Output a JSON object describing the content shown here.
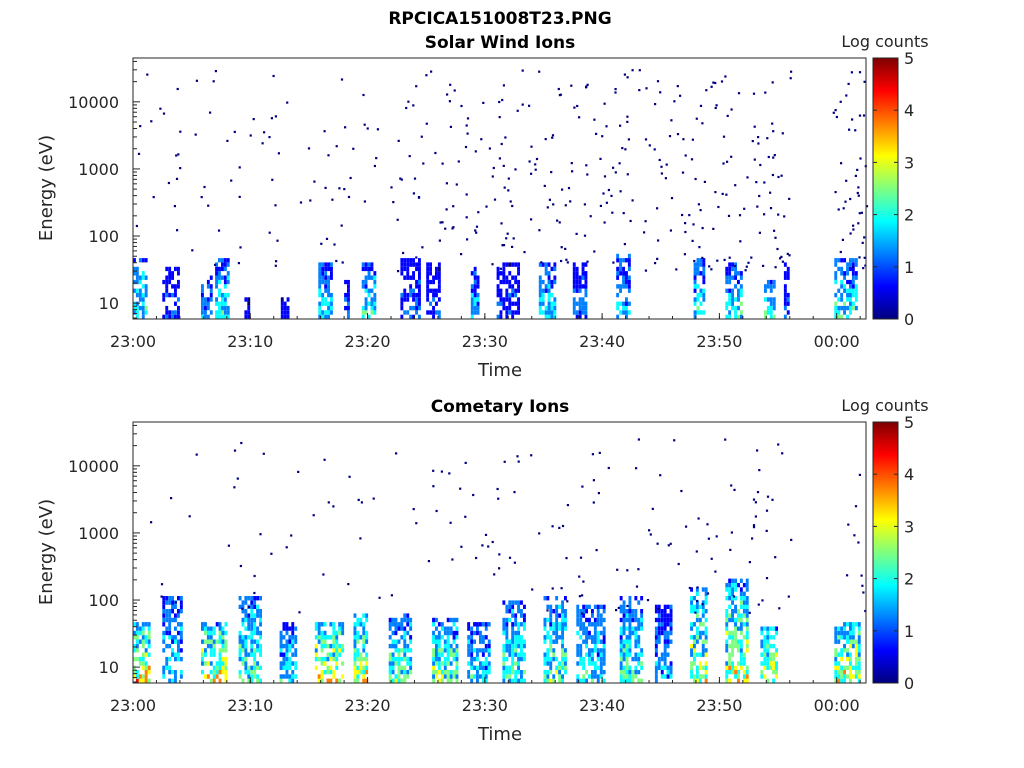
{
  "figure": {
    "title": "RPCICA151008T23.PNG"
  },
  "colormap": [
    "#00007f",
    "#0000ff",
    "#007fff",
    "#00ffff",
    "#7fff7f",
    "#ffff00",
    "#ff7f00",
    "#ff0000",
    "#7f0000"
  ],
  "chart_data": [
    {
      "type": "heatmap",
      "title": "Solar Wind Ions",
      "xlabel": "Time",
      "ylabel": "Energy (eV)",
      "x_ticks": [
        {
          "value": 0,
          "label": "23:00"
        },
        {
          "value": 10,
          "label": "23:10"
        },
        {
          "value": 20,
          "label": "23:20"
        },
        {
          "value": 30,
          "label": "23:30"
        },
        {
          "value": 40,
          "label": "23:40"
        },
        {
          "value": 50,
          "label": "23:50"
        },
        {
          "value": 60,
          "label": "00:00"
        }
      ],
      "xlim_minutes": [
        0,
        62.5
      ],
      "y_scale": "log",
      "ylim": [
        5.8,
        45000
      ],
      "y_ticks": [
        {
          "value": 10,
          "label": "10"
        },
        {
          "value": 100,
          "label": "100"
        },
        {
          "value": 1000,
          "label": "1000"
        },
        {
          "value": 10000,
          "label": "10000"
        }
      ],
      "colorbar": {
        "label": "Log counts",
        "min": 0,
        "max": 5,
        "ticks": [
          "0",
          "1",
          "2",
          "3",
          "4",
          "5"
        ]
      },
      "scatter_low_counts": {
        "count": 430,
        "seed": 11,
        "min_energy": 30,
        "max_energy": 30000,
        "density_growth": "increasing with time"
      },
      "bursts": [
        {
          "t": [
            0.0,
            1.2
          ],
          "emax": 42,
          "level": 1.7
        },
        {
          "t": [
            2.5,
            3.8
          ],
          "emax": 30,
          "level": 0.8
        },
        {
          "t": [
            5.8,
            6.8
          ],
          "emax": 25,
          "level": 1.2
        },
        {
          "t": [
            7.0,
            8.2
          ],
          "emax": 42,
          "level": 1.6
        },
        {
          "t": [
            9.5,
            10.0
          ],
          "emax": 12,
          "level": 0.5
        },
        {
          "t": [
            12.6,
            13.3
          ],
          "emax": 12,
          "level": 0.6
        },
        {
          "t": [
            15.8,
            17.0
          ],
          "emax": 40,
          "level": 1.5
        },
        {
          "t": [
            18.0,
            18.5
          ],
          "emax": 20,
          "level": 0.8
        },
        {
          "t": [
            19.5,
            20.6
          ],
          "emax": 40,
          "level": 1.6
        },
        {
          "t": [
            22.8,
            24.4
          ],
          "emax": 42,
          "level": 0.9
        },
        {
          "t": [
            25.0,
            26.2
          ],
          "emax": 36,
          "level": 0.8
        },
        {
          "t": [
            28.8,
            29.4
          ],
          "emax": 30,
          "level": 1.3
        },
        {
          "t": [
            31.0,
            33.0
          ],
          "emax": 36,
          "level": 0.8
        },
        {
          "t": [
            34.6,
            36.0
          ],
          "emax": 38,
          "level": 1.5
        },
        {
          "t": [
            37.5,
            38.6
          ],
          "emax": 40,
          "level": 1.1
        },
        {
          "t": [
            41.2,
            42.3
          ],
          "emax": 50,
          "level": 1.4
        },
        {
          "t": [
            47.8,
            48.8
          ],
          "emax": 42,
          "level": 1.6
        },
        {
          "t": [
            50.5,
            52.0
          ],
          "emax": 40,
          "level": 1.6
        },
        {
          "t": [
            53.8,
            54.8
          ],
          "emax": 20,
          "level": 1.7
        },
        {
          "t": [
            55.5,
            56.0
          ],
          "emax": 40,
          "level": 0.8
        },
        {
          "t": [
            59.8,
            61.8
          ],
          "emax": 42,
          "level": 1.6
        }
      ]
    },
    {
      "type": "heatmap",
      "title": "Cometary Ions",
      "xlabel": "Time",
      "ylabel": "Energy (eV)",
      "x_ticks": [
        {
          "value": 0,
          "label": "23:00"
        },
        {
          "value": 10,
          "label": "23:10"
        },
        {
          "value": 20,
          "label": "23:20"
        },
        {
          "value": 30,
          "label": "23:30"
        },
        {
          "value": 40,
          "label": "23:40"
        },
        {
          "value": 50,
          "label": "23:50"
        },
        {
          "value": 60,
          "label": "00:00"
        }
      ],
      "xlim_minutes": [
        0,
        62.5
      ],
      "y_scale": "log",
      "ylim": [
        5.8,
        45000
      ],
      "y_ticks": [
        {
          "value": 10,
          "label": "10"
        },
        {
          "value": 100,
          "label": "100"
        },
        {
          "value": 1000,
          "label": "1000"
        },
        {
          "value": 10000,
          "label": "10000"
        }
      ],
      "colorbar": {
        "label": "Log counts",
        "min": 0,
        "max": 5,
        "ticks": [
          "0",
          "1",
          "2",
          "3",
          "4",
          "5"
        ]
      },
      "scatter_low_counts": {
        "count": 170,
        "seed": 23,
        "min_energy": 60,
        "max_energy": 25000,
        "density_growth": "increasing with time"
      },
      "bursts": [
        {
          "t": [
            0.0,
            1.3
          ],
          "emax": 45,
          "level": 2.6
        },
        {
          "t": [
            2.5,
            4.2
          ],
          "emax": 110,
          "level": 1.6
        },
        {
          "t": [
            5.8,
            7.9
          ],
          "emax": 45,
          "level": 2.5
        },
        {
          "t": [
            9.0,
            11.0
          ],
          "emax": 100,
          "level": 1.9
        },
        {
          "t": [
            12.5,
            14.0
          ],
          "emax": 45,
          "level": 1.5
        },
        {
          "t": [
            15.5,
            17.8
          ],
          "emax": 45,
          "level": 2.6
        },
        {
          "t": [
            18.8,
            20.0
          ],
          "emax": 60,
          "level": 2.4
        },
        {
          "t": [
            21.8,
            23.8
          ],
          "emax": 60,
          "level": 1.9
        },
        {
          "t": [
            25.5,
            27.6
          ],
          "emax": 50,
          "level": 2.0
        },
        {
          "t": [
            28.5,
            30.5
          ],
          "emax": 45,
          "level": 1.5
        },
        {
          "t": [
            31.5,
            33.3
          ],
          "emax": 90,
          "level": 1.8
        },
        {
          "t": [
            35.0,
            37.0
          ],
          "emax": 100,
          "level": 1.9
        },
        {
          "t": [
            37.8,
            40.2
          ],
          "emax": 80,
          "level": 1.6
        },
        {
          "t": [
            41.5,
            43.5
          ],
          "emax": 110,
          "level": 1.8
        },
        {
          "t": [
            44.5,
            46.0
          ],
          "emax": 80,
          "level": 1.2
        },
        {
          "t": [
            47.5,
            49.0
          ],
          "emax": 150,
          "level": 2.2
        },
        {
          "t": [
            50.5,
            52.5
          ],
          "emax": 180,
          "level": 2.4
        },
        {
          "t": [
            53.5,
            55.0
          ],
          "emax": 40,
          "level": 2.4
        },
        {
          "t": [
            59.8,
            62.0
          ],
          "emax": 45,
          "level": 2.6
        }
      ]
    }
  ]
}
